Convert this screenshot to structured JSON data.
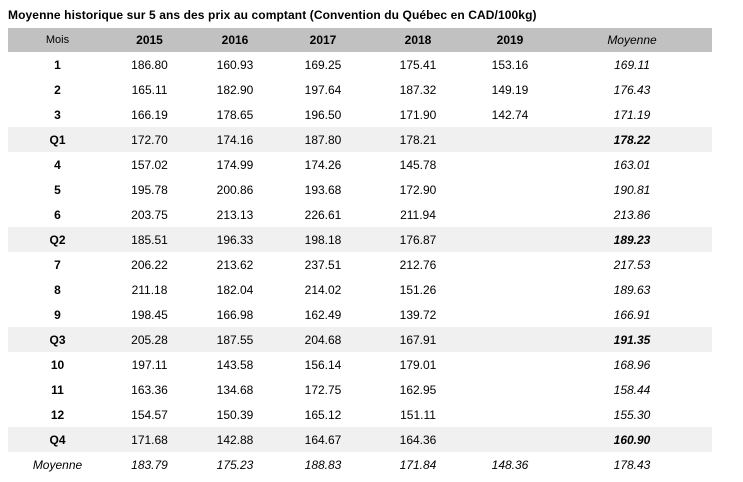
{
  "colors": {
    "header_bg": "#c1c1c1",
    "quarter_row_bg": "#f0f0f0",
    "text": "#000000"
  },
  "chart_data": {
    "type": "table",
    "title": "Moyenne historique sur 5 ans des prix au comptant (Convention du Québec en CAD/100kg)",
    "columns": [
      "Mois",
      "2015",
      "2016",
      "2017",
      "2018",
      "2019",
      "Moyenne"
    ],
    "rows": [
      {
        "label": "1",
        "kind": "month",
        "cells": [
          "186.80",
          "160.93",
          "169.25",
          "175.41",
          "153.16",
          "169.11"
        ]
      },
      {
        "label": "2",
        "kind": "month",
        "cells": [
          "165.11",
          "182.90",
          "197.64",
          "187.32",
          "149.19",
          "176.43"
        ]
      },
      {
        "label": "3",
        "kind": "month",
        "cells": [
          "166.19",
          "178.65",
          "196.50",
          "171.90",
          "142.74",
          "171.19"
        ]
      },
      {
        "label": "Q1",
        "kind": "quarter",
        "cells": [
          "172.70",
          "174.16",
          "187.80",
          "178.21",
          "",
          "178.22"
        ]
      },
      {
        "label": "4",
        "kind": "month",
        "cells": [
          "157.02",
          "174.99",
          "174.26",
          "145.78",
          "",
          "163.01"
        ]
      },
      {
        "label": "5",
        "kind": "month",
        "cells": [
          "195.78",
          "200.86",
          "193.68",
          "172.90",
          "",
          "190.81"
        ]
      },
      {
        "label": "6",
        "kind": "month",
        "cells": [
          "203.75",
          "213.13",
          "226.61",
          "211.94",
          "",
          "213.86"
        ]
      },
      {
        "label": "Q2",
        "kind": "quarter",
        "cells": [
          "185.51",
          "196.33",
          "198.18",
          "176.87",
          "",
          "189.23"
        ]
      },
      {
        "label": "7",
        "kind": "month",
        "cells": [
          "206.22",
          "213.62",
          "237.51",
          "212.76",
          "",
          "217.53"
        ]
      },
      {
        "label": "8",
        "kind": "month",
        "cells": [
          "211.18",
          "182.04",
          "214.02",
          "151.26",
          "",
          "189.63"
        ]
      },
      {
        "label": "9",
        "kind": "month",
        "cells": [
          "198.45",
          "166.98",
          "162.49",
          "139.72",
          "",
          "166.91"
        ]
      },
      {
        "label": "Q3",
        "kind": "quarter",
        "cells": [
          "205.28",
          "187.55",
          "204.68",
          "167.91",
          "",
          "191.35"
        ]
      },
      {
        "label": "10",
        "kind": "month",
        "cells": [
          "197.11",
          "143.58",
          "156.14",
          "179.01",
          "",
          "168.96"
        ]
      },
      {
        "label": "11",
        "kind": "month",
        "cells": [
          "163.36",
          "134.68",
          "172.75",
          "162.95",
          "",
          "158.44"
        ]
      },
      {
        "label": "12",
        "kind": "month",
        "cells": [
          "154.57",
          "150.39",
          "165.12",
          "151.11",
          "",
          "155.30"
        ]
      },
      {
        "label": "Q4",
        "kind": "quarter",
        "cells": [
          "171.68",
          "142.88",
          "164.67",
          "164.36",
          "",
          "160.90"
        ]
      },
      {
        "label": "Moyenne",
        "kind": "average",
        "cells": [
          "183.79",
          "175.23",
          "188.83",
          "171.84",
          "148.36",
          "178.43"
        ]
      }
    ]
  }
}
